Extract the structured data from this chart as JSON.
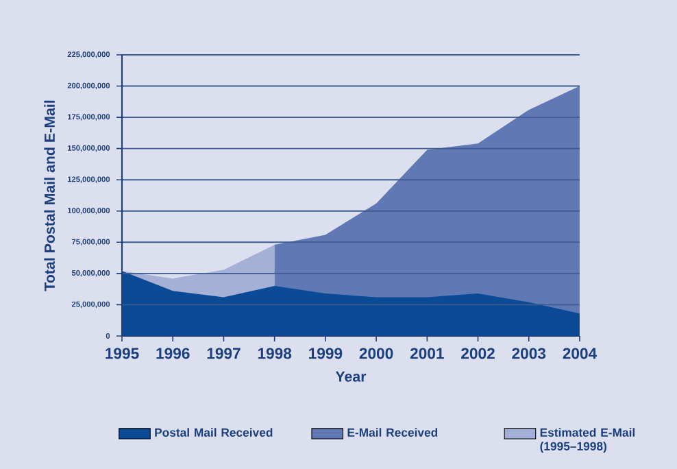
{
  "chart_data": {
    "type": "area",
    "xlabel": "Year",
    "ylabel": "Total Postal Mail and E-Mail",
    "categories": [
      "1995",
      "1996",
      "1997",
      "1998",
      "1999",
      "2000",
      "2001",
      "2002",
      "2003",
      "2004"
    ],
    "series": [
      {
        "name": "Postal Mail Received",
        "color": "#0b4a94",
        "values": [
          52000000,
          36000000,
          31000000,
          40000000,
          34000000,
          31000000,
          31000000,
          34000000,
          27000000,
          18000000
        ]
      },
      {
        "name": "E-Mail Received",
        "color": "#6079b4",
        "values": [
          null,
          null,
          null,
          73000000,
          81000000,
          106000000,
          149000000,
          154000000,
          181000000,
          200000000
        ]
      },
      {
        "name": "Estimated E-Mail (1995–1998)",
        "color": "#a4b0d6",
        "values": [
          52000000,
          46000000,
          53000000,
          73000000,
          null,
          null,
          null,
          null,
          null,
          null
        ]
      }
    ],
    "ylim": [
      0,
      225000000
    ],
    "yticks": [
      {
        "value": 0,
        "label": "0"
      },
      {
        "value": 25000000,
        "label": "25,000,000"
      },
      {
        "value": 50000000,
        "label": "50,000,000"
      },
      {
        "value": 75000000,
        "label": "75,000,000"
      },
      {
        "value": 100000000,
        "label": "100,000,000"
      },
      {
        "value": 125000000,
        "label": "125,000,000"
      },
      {
        "value": 150000000,
        "label": "150,000,000"
      },
      {
        "value": 175000000,
        "label": "175,000,000"
      },
      {
        "value": 200000000,
        "label": "200,000,000"
      },
      {
        "value": 225000000,
        "label": "225,000,000"
      }
    ],
    "grid": "y",
    "legend": "bottom"
  }
}
